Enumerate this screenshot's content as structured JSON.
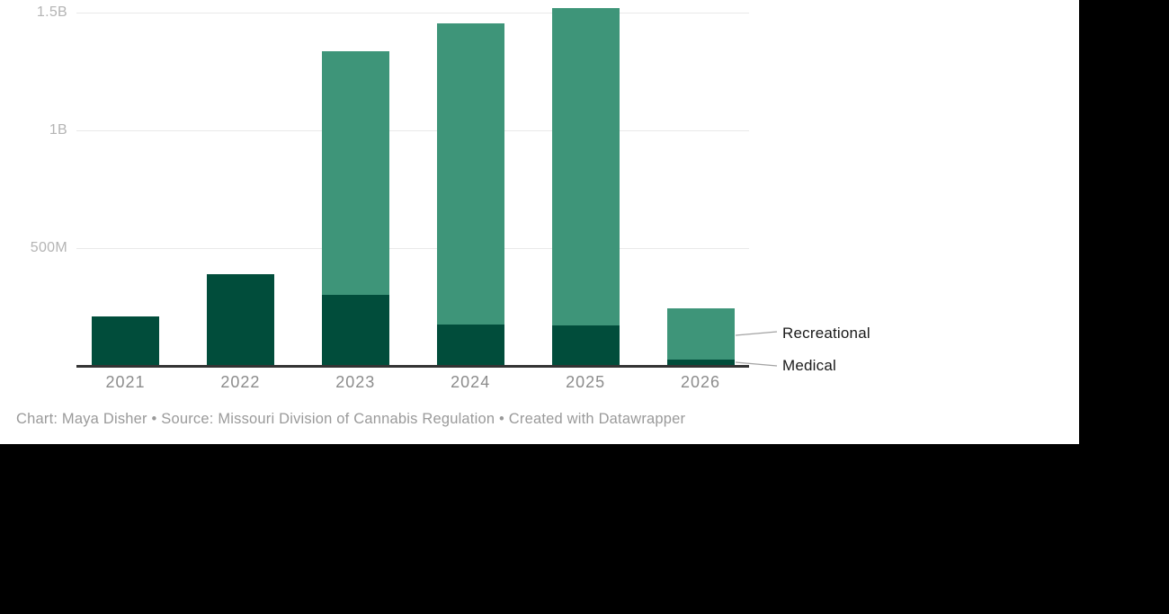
{
  "chart_data": {
    "type": "bar",
    "stacked": true,
    "title": "",
    "xlabel": "",
    "ylabel": "",
    "units": "USD millions",
    "categories": [
      "2021",
      "2022",
      "2023",
      "2024",
      "2025",
      "2026"
    ],
    "series": [
      {
        "name": "Medical",
        "color": "#014d3b",
        "values": [
          210,
          390,
          300,
          175,
          170,
          25
        ]
      },
      {
        "name": "Recreational",
        "color": "#3e9579",
        "values": [
          0,
          0,
          1035,
          1280,
          1350,
          220
        ]
      }
    ],
    "y_ticks": [
      {
        "value": 500,
        "label": "500M"
      },
      {
        "value": 1000,
        "label": "1B"
      },
      {
        "value": 1500,
        "label": "1.5B"
      }
    ],
    "ylim": [
      0,
      1530
    ],
    "grid": "horizontal",
    "legend_position": "right-of-last-bar"
  },
  "legend": {
    "items": [
      {
        "label": "Recreational"
      },
      {
        "label": "Medical"
      }
    ]
  },
  "caption": "Chart: Maya Disher • Source: Missouri Division of Cannabis Regulation • Created with Datawrapper",
  "colors": {
    "medical": "#014d3b",
    "recreational": "#3e9579",
    "gridline": "#e9e9e9",
    "axis": "#333333",
    "y_tick_text": "#b4b4b4",
    "x_tick_text": "#8c8c8c",
    "caption_text": "#9a9a9a",
    "legend_text": "#1a1a1a",
    "panel_background": "#ffffff",
    "letterbox": "#000000"
  }
}
